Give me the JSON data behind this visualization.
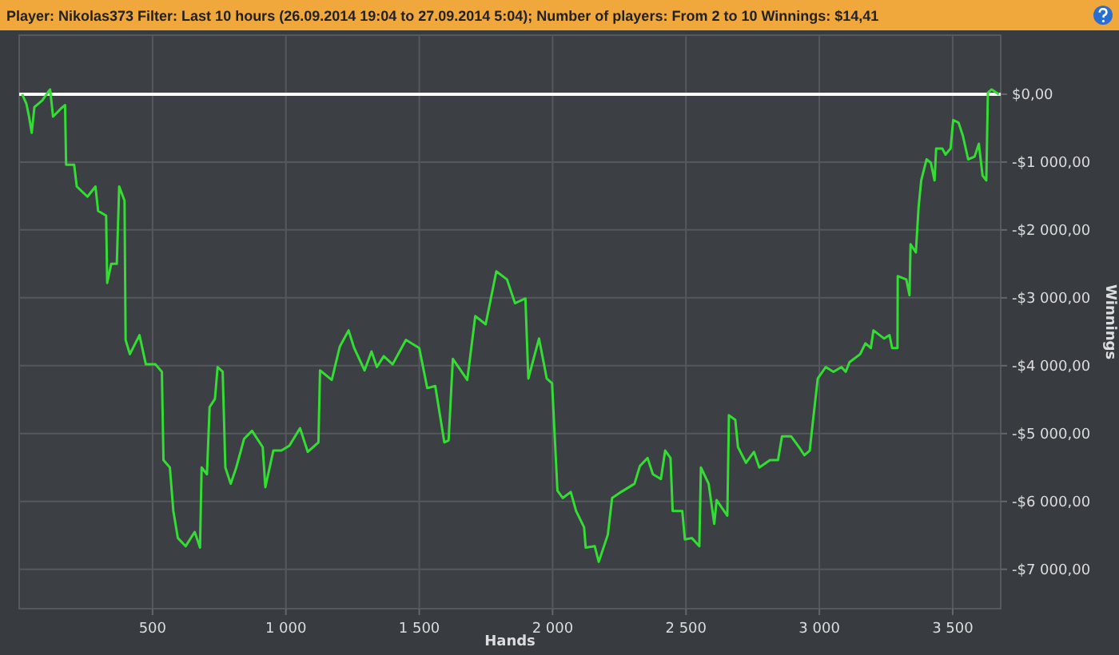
{
  "chart_data": {
    "type": "line",
    "title": "Player: Nikolas373  Filter: Last 10 hours (26.09.2014 19:04 to 27.09.2014 5:04); Number of players: From 2 to 10  Winnings: $14,41",
    "xlabel": "Hands",
    "ylabel": "Winnings",
    "xlim": [
      0,
      3680
    ],
    "ylim": [
      -7580,
      870
    ],
    "xticks": [
      {
        "value": 500,
        "label": "500"
      },
      {
        "value": 1000,
        "label": "1 000"
      },
      {
        "value": 1500,
        "label": "1 500"
      },
      {
        "value": 2000,
        "label": "2 000"
      },
      {
        "value": 2500,
        "label": "2 500"
      },
      {
        "value": 3000,
        "label": "3 000"
      },
      {
        "value": 3500,
        "label": "3 500"
      }
    ],
    "yticks": [
      {
        "value": 0,
        "label": "$0,00"
      },
      {
        "value": -1000,
        "label": "-$1 000,00"
      },
      {
        "value": -2000,
        "label": "-$2 000,00"
      },
      {
        "value": -3000,
        "label": "-$3 000,00"
      },
      {
        "value": -4000,
        "label": "-$4 000,00"
      },
      {
        "value": -5000,
        "label": "-$5 000,00"
      },
      {
        "value": -6000,
        "label": "-$6 000,00"
      },
      {
        "value": -7000,
        "label": "-$7 000,00"
      }
    ],
    "grid": true,
    "marker": "none",
    "line_style": "solid",
    "ref_lines": [
      {
        "axis": "y",
        "value": 0,
        "color": "#ffffff"
      }
    ],
    "series": [
      {
        "color": "#33dd33",
        "x": [
          11,
          27,
          37,
          47,
          57,
          87,
          106,
          116,
          127,
          157,
          172,
          176,
          206,
          216,
          256,
          286,
          296,
          326,
          330,
          345,
          366,
          375,
          395,
          399,
          415,
          451,
          475,
          511,
          535,
          541,
          565,
          578,
          595,
          624,
          658,
          678,
          684,
          704,
          714,
          734,
          744,
          763,
          773,
          793,
          814,
          843,
          873,
          913,
          923,
          953,
          983,
          1013,
          1053,
          1082,
          1122,
          1128,
          1172,
          1202,
          1235,
          1256,
          1295,
          1321,
          1341,
          1367,
          1400,
          1450,
          1500,
          1530,
          1560,
          1594,
          1610,
          1626,
          1680,
          1710,
          1749,
          1789,
          1829,
          1859,
          1898,
          1909,
          1949,
          1978,
          1998,
          2018,
          2038,
          2068,
          2088,
          2118,
          2124,
          2158,
          2173,
          2207,
          2223,
          2257,
          2307,
          2327,
          2356,
          2376,
          2406,
          2422,
          2442,
          2450,
          2486,
          2496,
          2522,
          2550,
          2556,
          2585,
          2606,
          2615,
          2655,
          2661,
          2685,
          2695,
          2725,
          2755,
          2775,
          2815,
          2845,
          2860,
          2894,
          2924,
          2944,
          2964,
          2974,
          2994,
          3024,
          3053,
          3083,
          3099,
          3113,
          3153,
          3173,
          3193,
          3203,
          3243,
          3263,
          3273,
          3293,
          3294,
          3326,
          3338,
          3342,
          3362,
          3372,
          3382,
          3402,
          3418,
          3432,
          3438,
          3461,
          3473,
          3492,
          3502,
          3522,
          3538,
          3558,
          3582,
          3598,
          3612,
          3626,
          3632,
          3646,
          3673
        ],
        "values": [
          0,
          -140,
          -330,
          -570,
          -190,
          -90,
          20,
          70,
          -330,
          -210,
          -160,
          -1040,
          -1040,
          -1360,
          -1510,
          -1360,
          -1720,
          -1790,
          -2780,
          -2500,
          -2500,
          -1360,
          -1570,
          -3620,
          -3830,
          -3550,
          -3980,
          -3980,
          -4090,
          -5390,
          -5500,
          -6140,
          -6540,
          -6660,
          -6450,
          -6680,
          -5500,
          -5600,
          -4610,
          -4490,
          -4020,
          -4090,
          -5500,
          -5740,
          -5500,
          -5080,
          -4960,
          -5200,
          -5790,
          -5250,
          -5250,
          -5180,
          -4920,
          -5270,
          -5130,
          -4070,
          -4210,
          -3720,
          -3480,
          -3740,
          -4070,
          -3790,
          -4020,
          -3860,
          -3980,
          -3620,
          -3740,
          -4330,
          -4300,
          -5130,
          -5100,
          -3900,
          -4210,
          -3270,
          -3390,
          -2610,
          -2730,
          -3080,
          -3010,
          -4190,
          -3600,
          -4190,
          -4260,
          -5840,
          -5950,
          -5860,
          -6140,
          -6380,
          -6680,
          -6660,
          -6890,
          -6490,
          -5950,
          -5860,
          -5740,
          -5480,
          -5360,
          -5600,
          -5670,
          -5250,
          -5360,
          -6140,
          -6140,
          -6560,
          -6540,
          -6660,
          -5500,
          -5740,
          -6330,
          -5980,
          -6210,
          -4730,
          -4800,
          -5200,
          -5430,
          -5270,
          -5500,
          -5390,
          -5390,
          -5040,
          -5040,
          -5200,
          -5320,
          -5250,
          -4890,
          -4190,
          -4020,
          -4090,
          -4020,
          -4090,
          -3950,
          -3830,
          -3670,
          -3740,
          -3480,
          -3600,
          -3550,
          -3740,
          -3740,
          -2680,
          -2730,
          -2960,
          -2210,
          -2330,
          -1670,
          -1270,
          -960,
          -1010,
          -1270,
          -800,
          -800,
          -890,
          -800,
          -380,
          -420,
          -610,
          -960,
          -920,
          -730,
          -1200,
          -1270,
          20,
          70,
          0
        ]
      }
    ]
  }
}
